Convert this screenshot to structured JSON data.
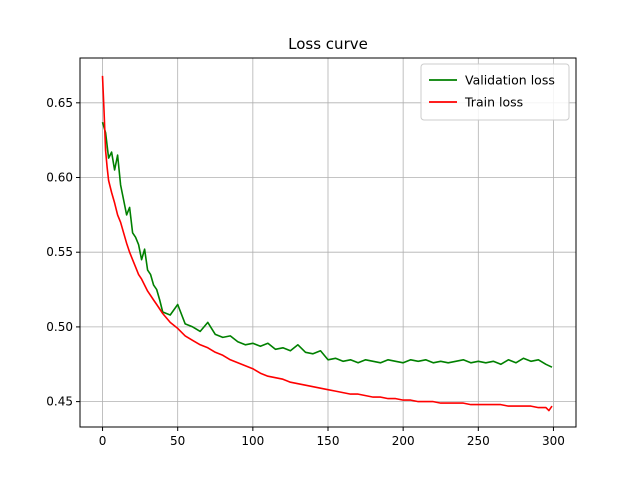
{
  "chart_data": {
    "type": "line",
    "title": "Loss curve",
    "xlabel": "",
    "ylabel": "",
    "xlim": [
      -15,
      315
    ],
    "ylim": [
      0.433,
      0.68
    ],
    "xticks": [
      0,
      50,
      100,
      150,
      200,
      250,
      300
    ],
    "yticks": [
      0.45,
      0.5,
      0.55,
      0.6,
      0.65
    ],
    "xtick_labels": [
      "0",
      "50",
      "100",
      "150",
      "200",
      "250",
      "300"
    ],
    "ytick_labels": [
      "0.45",
      "0.50",
      "0.55",
      "0.60",
      "0.65"
    ],
    "grid": true,
    "legend_placement": "top-right",
    "series": [
      {
        "name": "Validation loss",
        "color": "#008000",
        "x": [
          0,
          2,
          4,
          6,
          8,
          10,
          12,
          14,
          16,
          18,
          20,
          22,
          24,
          26,
          28,
          30,
          32,
          34,
          36,
          38,
          40,
          45,
          50,
          55,
          60,
          65,
          70,
          75,
          80,
          85,
          90,
          95,
          100,
          105,
          110,
          115,
          120,
          125,
          130,
          135,
          140,
          145,
          150,
          155,
          160,
          165,
          170,
          175,
          180,
          185,
          190,
          195,
          200,
          205,
          210,
          215,
          220,
          225,
          230,
          235,
          240,
          245,
          250,
          255,
          260,
          265,
          270,
          275,
          280,
          285,
          290,
          295,
          299
        ],
        "y": [
          0.637,
          0.63,
          0.613,
          0.617,
          0.605,
          0.615,
          0.595,
          0.585,
          0.575,
          0.58,
          0.563,
          0.56,
          0.555,
          0.545,
          0.552,
          0.538,
          0.535,
          0.528,
          0.525,
          0.518,
          0.51,
          0.508,
          0.515,
          0.502,
          0.5,
          0.497,
          0.503,
          0.495,
          0.493,
          0.494,
          0.49,
          0.488,
          0.489,
          0.487,
          0.489,
          0.485,
          0.486,
          0.484,
          0.488,
          0.483,
          0.482,
          0.484,
          0.478,
          0.479,
          0.477,
          0.478,
          0.476,
          0.478,
          0.477,
          0.476,
          0.478,
          0.477,
          0.476,
          0.478,
          0.477,
          0.478,
          0.476,
          0.477,
          0.476,
          0.477,
          0.478,
          0.476,
          0.477,
          0.476,
          0.477,
          0.475,
          0.478,
          0.476,
          0.479,
          0.477,
          0.478,
          0.475,
          0.473
        ]
      },
      {
        "name": "Train loss",
        "color": "#ff0000",
        "x": [
          0,
          1,
          2,
          3,
          4,
          6,
          8,
          10,
          12,
          14,
          16,
          18,
          20,
          22,
          24,
          26,
          28,
          30,
          32,
          34,
          36,
          38,
          40,
          45,
          50,
          55,
          60,
          65,
          70,
          75,
          80,
          85,
          90,
          95,
          100,
          105,
          110,
          115,
          120,
          125,
          130,
          135,
          140,
          145,
          150,
          155,
          160,
          165,
          170,
          175,
          180,
          185,
          190,
          195,
          200,
          205,
          210,
          215,
          220,
          225,
          230,
          235,
          240,
          245,
          250,
          255,
          260,
          265,
          270,
          275,
          280,
          285,
          290,
          295,
          297,
          299
        ],
        "y": [
          0.668,
          0.645,
          0.618,
          0.607,
          0.598,
          0.59,
          0.583,
          0.575,
          0.57,
          0.563,
          0.556,
          0.55,
          0.545,
          0.54,
          0.535,
          0.532,
          0.528,
          0.524,
          0.521,
          0.518,
          0.515,
          0.512,
          0.509,
          0.503,
          0.499,
          0.494,
          0.491,
          0.488,
          0.486,
          0.483,
          0.481,
          0.478,
          0.476,
          0.474,
          0.472,
          0.469,
          0.467,
          0.466,
          0.465,
          0.463,
          0.462,
          0.461,
          0.46,
          0.459,
          0.458,
          0.457,
          0.456,
          0.455,
          0.455,
          0.454,
          0.453,
          0.453,
          0.452,
          0.452,
          0.451,
          0.451,
          0.45,
          0.45,
          0.45,
          0.449,
          0.449,
          0.449,
          0.449,
          0.448,
          0.448,
          0.448,
          0.448,
          0.448,
          0.447,
          0.447,
          0.447,
          0.447,
          0.446,
          0.446,
          0.444,
          0.447
        ]
      }
    ]
  }
}
